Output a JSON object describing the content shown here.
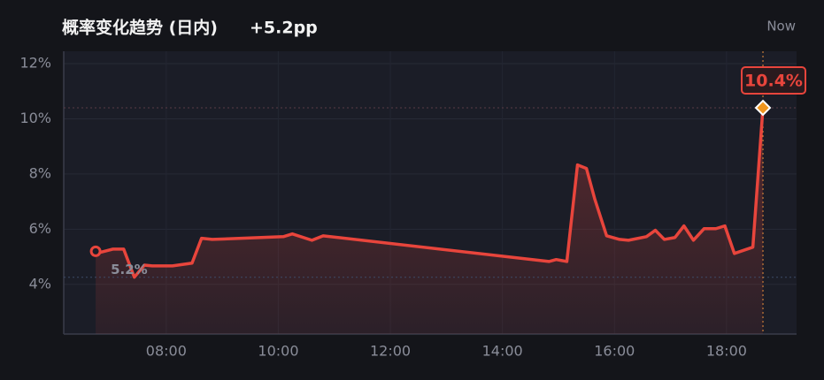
{
  "chart_data": {
    "type": "line",
    "title": "概率变化趋势 (日内)",
    "change": "+5.2pp",
    "corner_label": "Now",
    "x": [
      6.74,
      6.8,
      7.05,
      7.24,
      7.43,
      7.61,
      7.75,
      8.11,
      8.46,
      8.63,
      8.82,
      10.09,
      10.25,
      10.6,
      10.8,
      14.83,
      14.96,
      15.15,
      15.34,
      15.5,
      15.65,
      15.86,
      16.09,
      16.25,
      16.57,
      16.73,
      16.89,
      17.08,
      17.24,
      17.41,
      17.6,
      17.81,
      17.97,
      18.14,
      18.47,
      18.65
    ],
    "series": [
      {
        "color": "#e8453c",
        "values": [
          5.2,
          5.15,
          5.28,
          5.28,
          4.26,
          4.7,
          4.67,
          4.67,
          4.77,
          5.67,
          5.63,
          5.73,
          5.83,
          5.6,
          5.76,
          4.83,
          4.9,
          4.83,
          8.33,
          8.2,
          7.08,
          5.76,
          5.63,
          5.6,
          5.73,
          5.96,
          5.63,
          5.7,
          6.12,
          5.6,
          6.02,
          6.02,
          6.12,
          5.12,
          5.35,
          10.4
        ],
        "value_labels": [
          "5.2%",
          null,
          null,
          null,
          null,
          null,
          null,
          null,
          null,
          null,
          null,
          null,
          null,
          null,
          null,
          null,
          null,
          null,
          null,
          null,
          null,
          null,
          null,
          null,
          null,
          null,
          null,
          null,
          null,
          null,
          null,
          null,
          null,
          null,
          null,
          "10.4%"
        ]
      }
    ],
    "xlim": [
      6.17,
      19.25
    ],
    "xticks": [
      {
        "value": 8,
        "label": "08:00"
      },
      {
        "value": 10,
        "label": "10:00"
      },
      {
        "value": 12,
        "label": "12:00"
      },
      {
        "value": 14,
        "label": "14:00"
      },
      {
        "value": 16,
        "label": "16:00"
      },
      {
        "value": 18,
        "label": "18:00"
      }
    ],
    "ylim": [
      2.2,
      12.45
    ],
    "yticks": [
      {
        "value": 4,
        "label": "4%"
      },
      {
        "value": 6,
        "label": "6%"
      },
      {
        "value": 8,
        "label": "8%"
      },
      {
        "value": 10,
        "label": "10%"
      },
      {
        "value": 12,
        "label": "12%"
      }
    ],
    "grid": true
  }
}
